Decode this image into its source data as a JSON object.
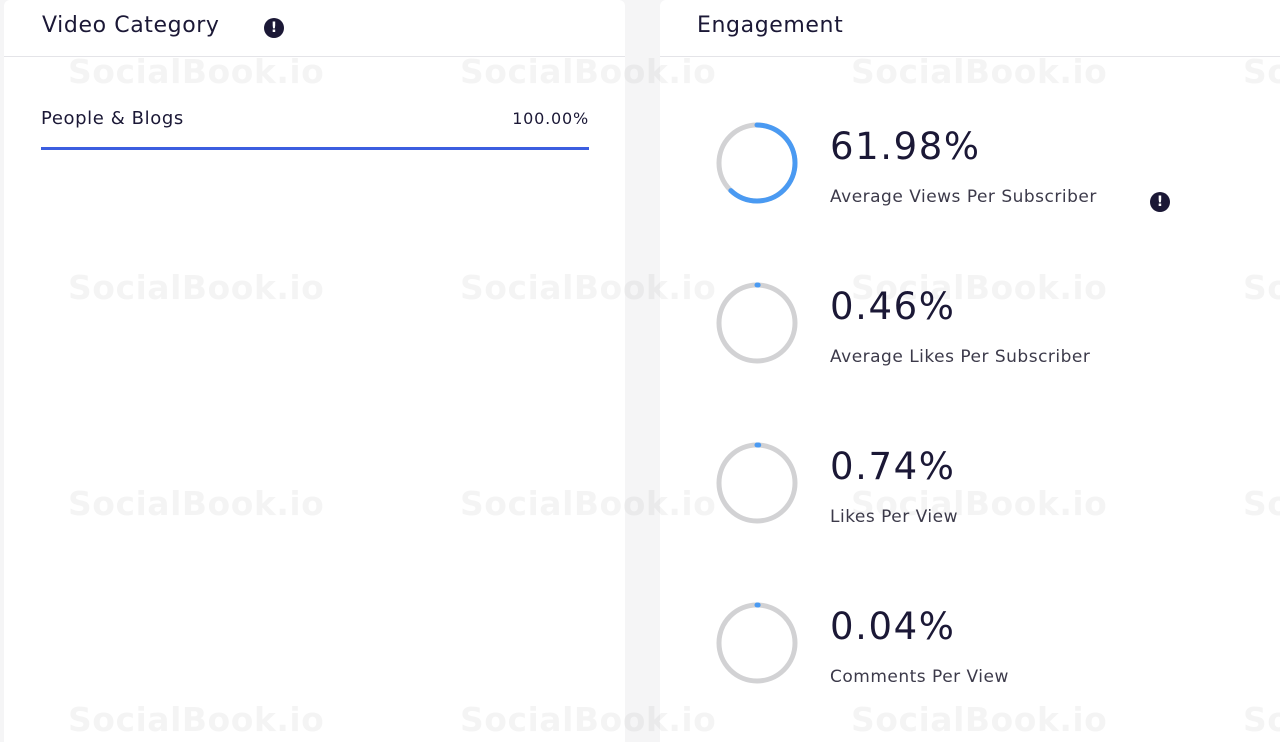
{
  "video_category": {
    "title": "Video Category",
    "categories": [
      {
        "name": "People & Blogs",
        "value": "100.00%",
        "share": 100
      }
    ]
  },
  "engagement": {
    "title": "Engagement",
    "metrics": [
      {
        "value": "61.98%",
        "label": "Average Views Per Subscriber",
        "percent": 61.98,
        "has_info": true
      },
      {
        "value": "0.46%",
        "label": "Average Likes Per Subscriber",
        "percent": 0.46,
        "has_info": false
      },
      {
        "value": "0.74%",
        "label": "Likes Per View",
        "percent": 0.74,
        "has_info": false
      },
      {
        "value": "0.04%",
        "label": "Comments Per View",
        "percent": 0.04,
        "has_info": false
      }
    ]
  },
  "watermark": "SocialBook.io",
  "info_icon_glyph": "!",
  "colors": {
    "accent_bar": "#3c5ee0",
    "ring_progress": "#4a9af2",
    "ring_track": "#d2d2d4",
    "text_dark": "#1b1836"
  }
}
